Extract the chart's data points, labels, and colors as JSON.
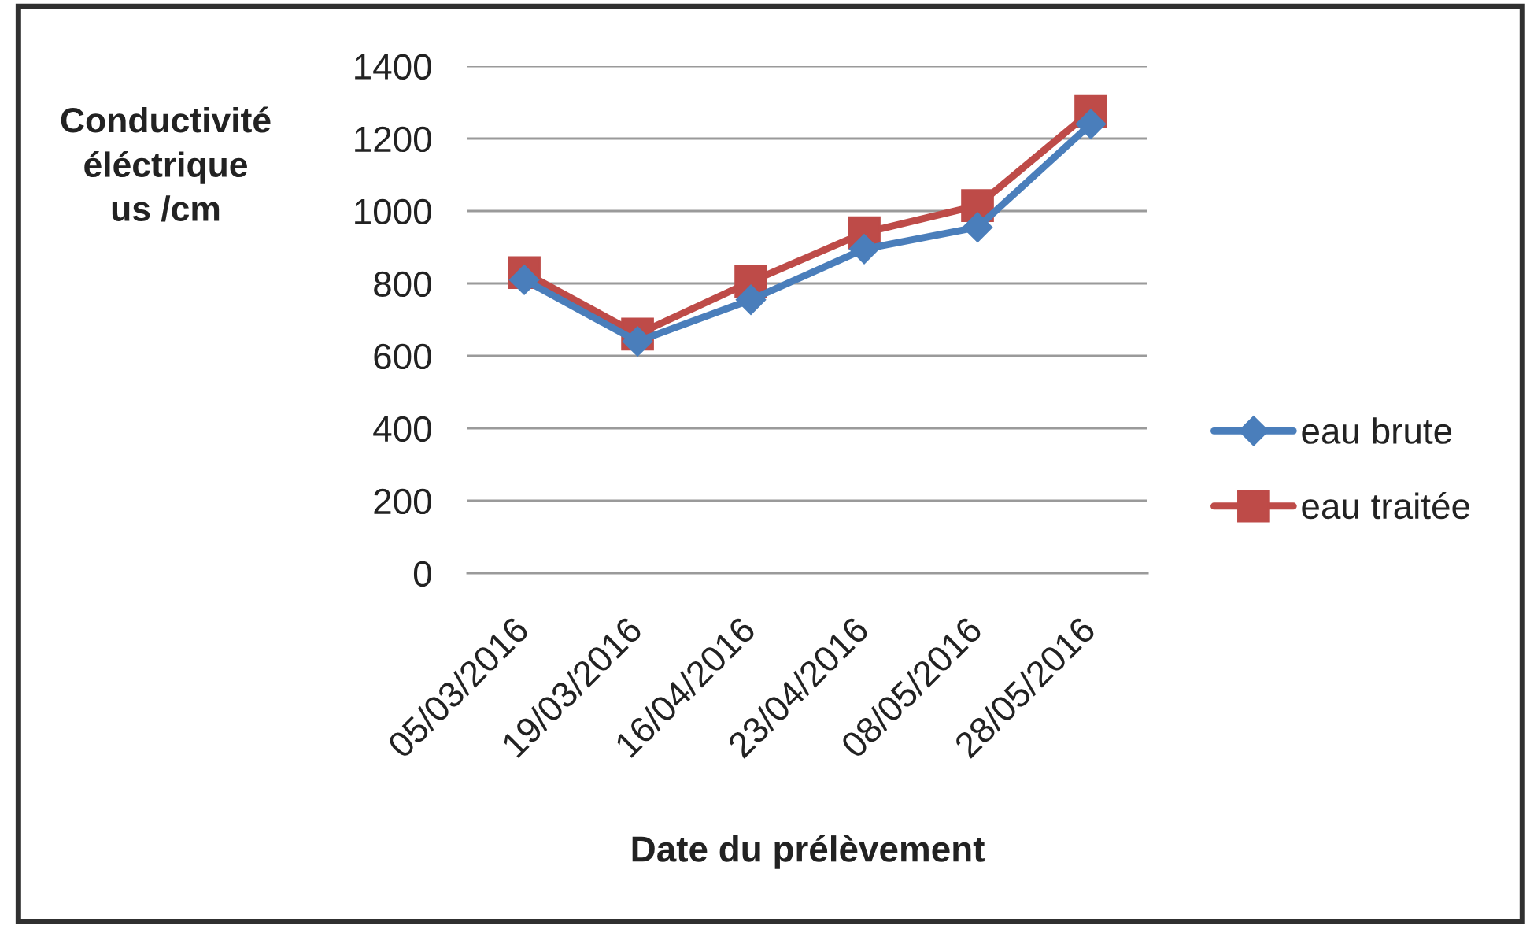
{
  "chart_data": {
    "type": "line",
    "xlabel": "Date du prélèvement",
    "ylabel": "Conductivité\néléctrique\nus /cm",
    "categories": [
      "05/03/2016",
      "19/03/2016",
      "16/04/2016",
      "23/04/2016",
      "08/05/2016",
      "28/05/2016"
    ],
    "series": [
      {
        "name": "eau brute",
        "color": "#4a7ebb",
        "marker": "diamond",
        "values": [
          810,
          640,
          755,
          895,
          955,
          1240
        ]
      },
      {
        "name": "eau traitée",
        "color": "#be4b48",
        "marker": "square",
        "values": [
          830,
          660,
          805,
          940,
          1015,
          1275
        ]
      }
    ],
    "ylim": [
      0,
      1400
    ],
    "yticks": [
      0,
      200,
      400,
      600,
      800,
      1000,
      1200,
      1400
    ],
    "grid": "y",
    "legend": "right",
    "line_style": "solid"
  }
}
